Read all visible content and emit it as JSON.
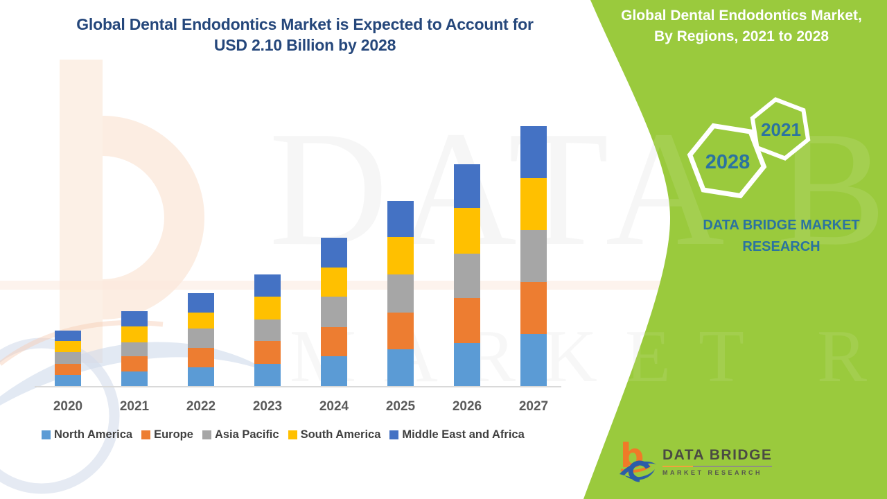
{
  "colors": {
    "green": "#9ACA3D",
    "title_navy": "#25477B",
    "teal": "#2B73A0",
    "label_gray": "#595959",
    "legend_text": "#3F3F3F",
    "axis_line": "#D9D9D9",
    "logo_orange": "#F07A28",
    "logo_blue": "#2B5DA7",
    "logo_text": "#4A4A43"
  },
  "left_panel": {
    "title_line1": "Global Dental Endodontics Market is Expected to Account for",
    "title_line2": "USD 2.10 Billion by 2028"
  },
  "right_panel": {
    "title_line1": "Global Dental Endodontics Market,",
    "title_line2": "By Regions, 2021 to 2028",
    "hexagon_top": "2021",
    "hexagon_bottom": "2028",
    "brand_line1": "DATA BRIDGE MARKET",
    "brand_line2": "RESEARCH",
    "logo_name": "DATA BRIDGE",
    "logo_sub": "MARKET RESEARCH"
  },
  "watermark": {
    "line1": "DATA BRIDGE",
    "line2": "MARKET RESEARCH"
  },
  "chart_data": {
    "type": "bar",
    "stacked": true,
    "title": "",
    "xlabel": "",
    "ylabel": "",
    "grid": false,
    "legend_position": "bottom",
    "categories": [
      "2020",
      "2021",
      "2022",
      "2023",
      "2024",
      "2025",
      "2026",
      "2027"
    ],
    "series": [
      {
        "name": "North America",
        "color": "#5B9BD5",
        "values": [
          16,
          21,
          27,
          32,
          43,
          53,
          62,
          75
        ]
      },
      {
        "name": "Europe",
        "color": "#ED7D31",
        "values": [
          16,
          22,
          28,
          33,
          42,
          53,
          65,
          75
        ]
      },
      {
        "name": "Asia Pacific",
        "color": "#A6A6A6",
        "values": [
          17,
          20,
          28,
          31,
          44,
          55,
          64,
          75
        ]
      },
      {
        "name": "South America",
        "color": "#FFC000",
        "values": [
          16,
          23,
          23,
          33,
          42,
          54,
          66,
          75
        ]
      },
      {
        "name": "Middle East and Africa",
        "color": "#4472C4",
        "values": [
          15,
          22,
          28,
          32,
          43,
          52,
          63,
          75
        ]
      }
    ],
    "stack_totals": [
      80,
      108,
      134,
      161,
      214,
      267,
      320,
      375
    ],
    "value_units": "relative height (no y-axis, gridlines or data labels shown in figure)",
    "ylim": [
      0,
      400
    ]
  }
}
